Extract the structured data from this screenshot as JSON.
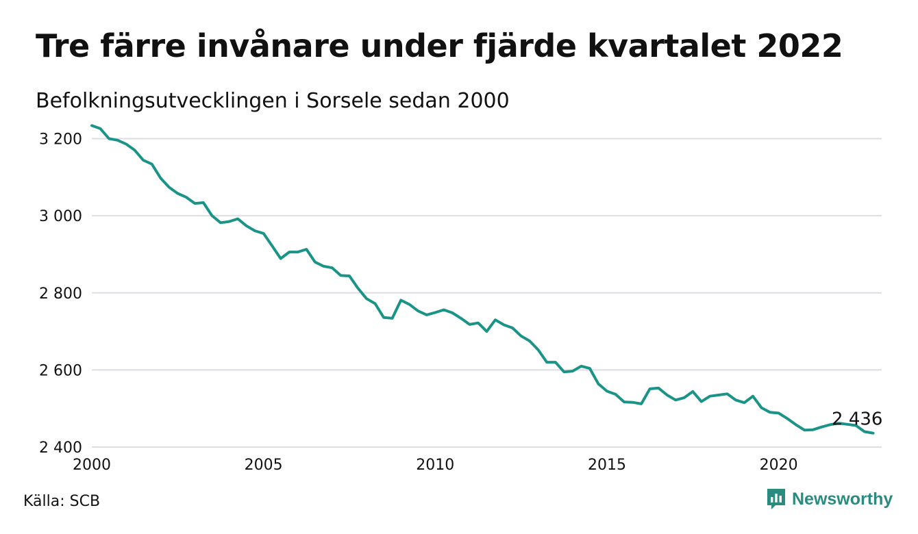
{
  "header": {
    "title": "Tre färre invånare under fjärde kvartalet 2022",
    "subtitle": "Befolkningsutvecklingen i Sorsele sedan 2000"
  },
  "footer": {
    "source": "Källa: SCB",
    "brand": "Newsworthy",
    "brand_icon": "newsworthy-logo-icon"
  },
  "colors": {
    "line": "#1a9486",
    "grid": "#dddde3",
    "brand": "#2a8c7e",
    "text": "#111111"
  },
  "chart_data": {
    "type": "line",
    "title": "Tre färre invånare under fjärde kvartalet 2022",
    "subtitle": "Befolkningsutvecklingen i Sorsele sedan 2000",
    "xlabel": "",
    "ylabel": "",
    "grid": true,
    "legend": "none",
    "xlim": [
      2000,
      2023
    ],
    "ylim": [
      2400,
      3240
    ],
    "x_ticks": [
      2000,
      2005,
      2010,
      2015,
      2020
    ],
    "x_tick_labels": [
      "2000",
      "2005",
      "2010",
      "2015",
      "2020"
    ],
    "y_ticks": [
      2400,
      2600,
      2800,
      3000,
      3200
    ],
    "y_tick_labels": [
      "2 400",
      "2 600",
      "2 800",
      "3 000",
      "3 200"
    ],
    "annotation": {
      "label": "2 436",
      "x": 2022.75,
      "y": 2436
    },
    "series": [
      {
        "x": [
          2000,
          2000.25,
          2000.5,
          2000.75,
          2001,
          2001.25,
          2001.5,
          2001.75,
          2002,
          2002.25,
          2002.5,
          2002.75,
          2003,
          2003.25,
          2003.5,
          2003.75,
          2004,
          2004.25,
          2004.5,
          2004.75,
          2005,
          2005.25,
          2005.5,
          2005.75,
          2006,
          2006.25,
          2006.5,
          2006.75,
          2007,
          2007.25,
          2007.5,
          2007.75,
          2008,
          2008.25,
          2008.5,
          2008.75,
          2009,
          2009.25,
          2009.5,
          2009.75,
          2010,
          2010.25,
          2010.5,
          2010.75,
          2011,
          2011.25,
          2011.5,
          2011.75,
          2012,
          2012.25,
          2012.5,
          2012.75,
          2013,
          2013.25,
          2013.5,
          2013.75,
          2014,
          2014.25,
          2014.5,
          2014.75,
          2015,
          2015.25,
          2015.5,
          2015.75,
          2016,
          2016.25,
          2016.5,
          2016.75,
          2017,
          2017.25,
          2017.5,
          2017.75,
          2018,
          2018.25,
          2018.5,
          2018.75,
          2019,
          2019.25,
          2019.5,
          2019.75,
          2020,
          2020.25,
          2020.5,
          2020.75,
          2021,
          2021.25,
          2021.5,
          2021.75,
          2022,
          2022.25,
          2022.5,
          2022.75
        ],
        "values": [
          3234,
          3226,
          3200,
          3196,
          3186,
          3170,
          3144,
          3134,
          3098,
          3074,
          3058,
          3048,
          3032,
          3034,
          3000,
          2982,
          2985,
          2992,
          2974,
          2961,
          2954,
          2922,
          2889,
          2906,
          2906,
          2913,
          2880,
          2869,
          2865,
          2845,
          2844,
          2812,
          2785,
          2772,
          2736,
          2734,
          2781,
          2770,
          2753,
          2743,
          2749,
          2756,
          2748,
          2734,
          2718,
          2722,
          2700,
          2730,
          2717,
          2709,
          2688,
          2675,
          2652,
          2620,
          2620,
          2595,
          2597,
          2610,
          2604,
          2564,
          2545,
          2537,
          2517,
          2516,
          2512,
          2551,
          2553,
          2535,
          2522,
          2528,
          2544,
          2518,
          2532,
          2535,
          2538,
          2522,
          2515,
          2532,
          2502,
          2490,
          2488,
          2474,
          2458,
          2444,
          2445,
          2452,
          2458,
          2462,
          2459,
          2456,
          2440,
          2436
        ]
      }
    ]
  }
}
